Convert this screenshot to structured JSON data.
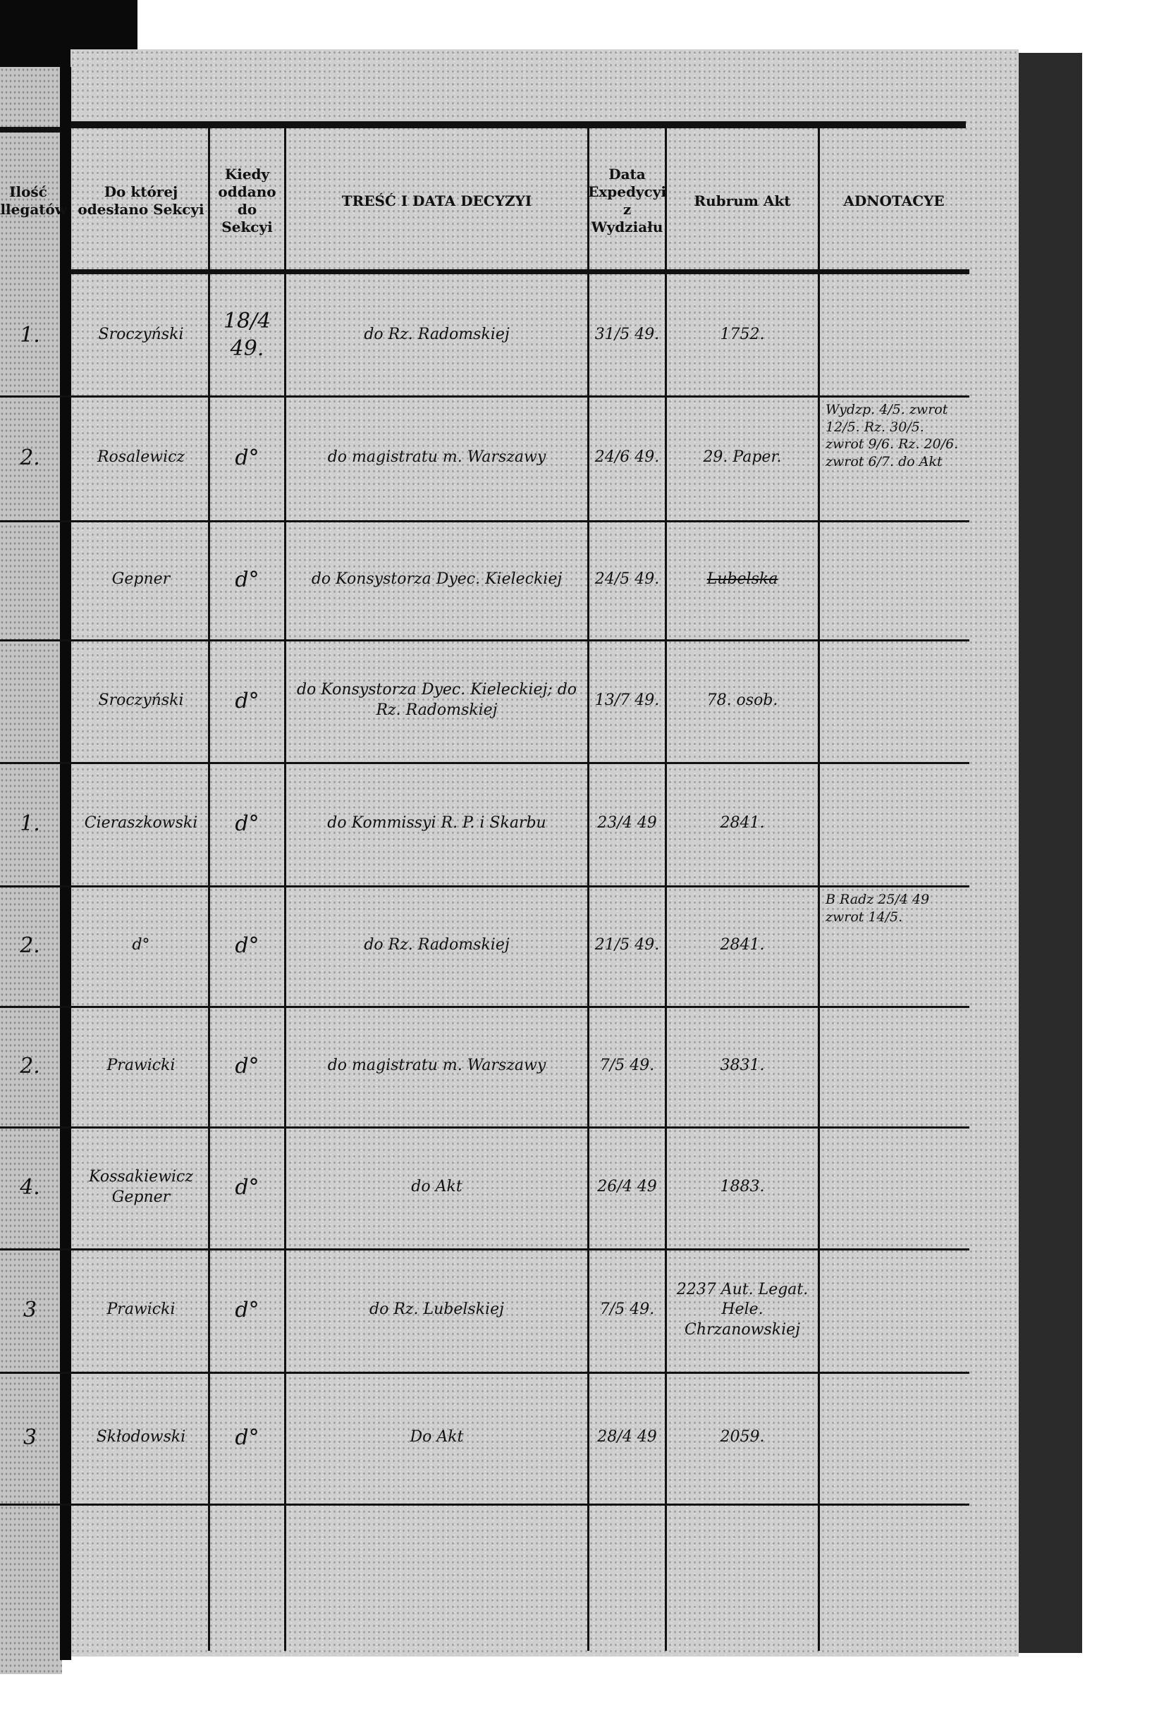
{
  "headers": {
    "count": "Ilość Allegatów",
    "section": "Do której odesłano Sekcyi",
    "when": "Kiedy oddano do Sekcyi",
    "content": "TREŚĆ I DATA DECYZYI",
    "dispatch": "Data Expedycyi z Wydziału",
    "rubrum": "Rubrum Akt",
    "notes": "ADNOTACYE"
  },
  "rows": [
    {
      "count": "1.",
      "section": "Sroczyński",
      "when": "18/4 49.",
      "content": "do Rz. Radomskiej",
      "dispatch": "31/5 49.",
      "rubrum": "1752.",
      "notes": ""
    },
    {
      "count": "2.",
      "section": "Rosalewicz",
      "when": "d°",
      "content": "do magistratu m. Warszawy",
      "dispatch": "24/6 49.",
      "rubrum": "29. Paper.",
      "notes": "Wydzp. 4/5. zwrot 12/5. Rz. 30/5. zwrot 9/6. Rz. 20/6. zwrot 6/7. do Akt"
    },
    {
      "count": "",
      "section": "Gepner",
      "when": "d°",
      "content": "do Konsystorza Dyec. Kieleckiej",
      "dispatch": "24/5 49.",
      "rubrum": "Lubelska",
      "notes": ""
    },
    {
      "count": "",
      "section": "Sroczyński",
      "when": "d°",
      "content": "do Konsystorza Dyec. Kieleckiej; do Rz. Radomskiej",
      "dispatch": "13/7 49.",
      "rubrum": "78. osob.",
      "notes": ""
    },
    {
      "count": "1.",
      "section": "Cieraszkowski",
      "when": "d°",
      "content": "do Kommissyi R. P. i Skarbu",
      "dispatch": "23/4 49",
      "rubrum": "2841.",
      "notes": ""
    },
    {
      "count": "2.",
      "section": "d°",
      "when": "d°",
      "content": "do Rz. Radomskiej",
      "dispatch": "21/5 49.",
      "rubrum": "2841.",
      "notes": "B Radz 25/4 49 zwrot 14/5."
    },
    {
      "count": "2.",
      "section": "Prawicki",
      "when": "d°",
      "content": "do magistratu m. Warszawy",
      "dispatch": "7/5 49.",
      "rubrum": "3831.",
      "notes": ""
    },
    {
      "count": "4.",
      "section": "Kossakiewicz Gepner",
      "when": "d°",
      "content": "do Akt",
      "dispatch": "26/4 49",
      "rubrum": "1883.",
      "notes": ""
    },
    {
      "count": "3",
      "section": "Prawicki",
      "when": "d°",
      "content": "do Rz. Lubelskiej",
      "dispatch": "7/5 49.",
      "rubrum": "2237 Aut. Legat. Hele. Chrzanowskiej",
      "notes": ""
    },
    {
      "count": "3",
      "section": "Skłodowski",
      "when": "d°",
      "content": "Do Akt",
      "dispatch": "28/4 49",
      "rubrum": "2059.",
      "notes": ""
    }
  ]
}
